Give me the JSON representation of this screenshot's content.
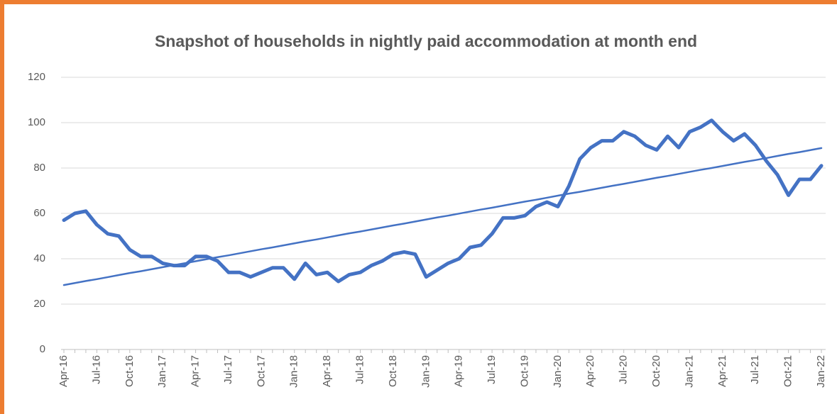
{
  "chart_data": {
    "type": "line",
    "title": "Snapshot of households in nightly paid accommodation at month end",
    "categories": [
      "Apr-16",
      null,
      null,
      "Jul-16",
      null,
      null,
      "Oct-16",
      null,
      null,
      "Jan-17",
      null,
      null,
      "Apr-17",
      null,
      null,
      "Jul-17",
      null,
      null,
      "Oct-17",
      null,
      null,
      "Jan-18",
      null,
      null,
      "Apr-18",
      null,
      null,
      "Jul-18",
      null,
      null,
      "Oct-18",
      null,
      null,
      "Jan-19",
      null,
      null,
      "Apr-19",
      null,
      null,
      "Jul-19",
      null,
      null,
      "Oct-19",
      null,
      null,
      "Jan-20",
      null,
      null,
      "Apr-20",
      null,
      null,
      "Jul-20",
      null,
      null,
      "Oct-20",
      null,
      null,
      "Jan-21",
      null,
      null,
      "Apr-21",
      null,
      null,
      "Jul-21",
      null,
      null,
      "Oct-21",
      null,
      null,
      "Jan-22"
    ],
    "series": [
      {
        "color": "#4472c4",
        "width": 5,
        "values": [
          57,
          60,
          61,
          55,
          51,
          50,
          44,
          41,
          41,
          38,
          37,
          37,
          41,
          41,
          39,
          34,
          34,
          32,
          34,
          36,
          36,
          31,
          38,
          33,
          34,
          30,
          33,
          34,
          37,
          39,
          42,
          43,
          42,
          32,
          35,
          38,
          40,
          45,
          46,
          51,
          58,
          58,
          59,
          63,
          65,
          63,
          72,
          84,
          89,
          92,
          92,
          96,
          94,
          90,
          88,
          94,
          89,
          96,
          98,
          101,
          96,
          92,
          95,
          90,
          83,
          77,
          68,
          75,
          75,
          81
        ]
      },
      {
        "color": "#4472c4",
        "width": 2.5,
        "values": [
          28.4,
          29.3,
          30.2,
          31.0,
          31.9,
          32.8,
          33.7,
          34.5,
          35.4,
          36.3,
          37.2,
          38.0,
          38.9,
          39.8,
          40.7,
          41.5,
          42.4,
          43.3,
          44.2,
          45.0,
          45.9,
          46.8,
          47.7,
          48.5,
          49.4,
          50.3,
          51.2,
          52.0,
          52.9,
          53.8,
          54.7,
          55.5,
          56.4,
          57.3,
          58.2,
          59.0,
          59.9,
          60.8,
          61.7,
          62.5,
          63.4,
          64.3,
          65.2,
          66.0,
          66.9,
          67.8,
          68.7,
          69.5,
          70.4,
          71.3,
          72.2,
          73.0,
          73.9,
          74.8,
          75.7,
          76.5,
          77.4,
          78.3,
          79.2,
          80.0,
          80.9,
          81.8,
          82.7,
          83.5,
          84.4,
          85.3,
          86.2,
          87.0,
          87.9,
          88.8
        ]
      }
    ],
    "ylim": [
      0,
      120
    ],
    "yticks": [
      0,
      20,
      40,
      60,
      80,
      100,
      120
    ],
    "grid": true
  }
}
